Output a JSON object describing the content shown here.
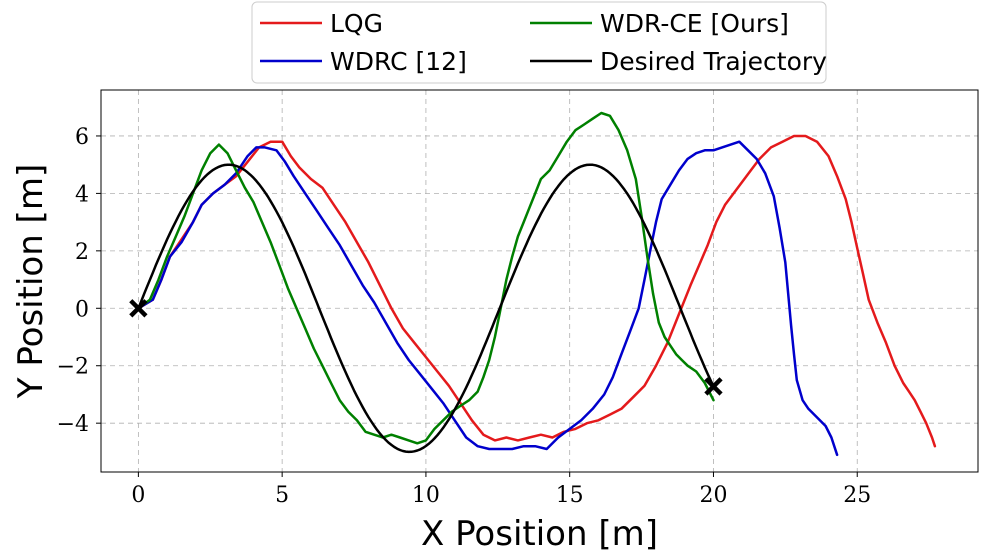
{
  "chart_data": {
    "type": "line",
    "title": "",
    "xlabel": "X Position [m]",
    "ylabel": "Y Position [m]",
    "xlim": [
      -1.3,
      29.2
    ],
    "ylim": [
      -5.7,
      7.6
    ],
    "xticks": [
      0,
      5,
      10,
      15,
      20,
      25
    ],
    "yticks": [
      -4,
      -2,
      0,
      2,
      4,
      6
    ],
    "xtick_labels": [
      "0",
      "5",
      "10",
      "15",
      "20",
      "25"
    ],
    "ytick_labels": [
      "−4",
      "−2",
      "0",
      "2",
      "4",
      "6"
    ],
    "grid": true,
    "legend_position": "top-center-outside",
    "series": [
      {
        "name": "LQG",
        "color": "#e41a1c",
        "x": [
          0,
          0.5,
          0.8,
          1.1,
          1.5,
          1.9,
          2.2,
          2.6,
          3.0,
          3.4,
          3.8,
          4.2,
          4.6,
          5.0,
          5.3,
          5.6,
          6.0,
          6.4,
          6.8,
          7.2,
          7.6,
          8.0,
          8.4,
          8.8,
          9.2,
          9.6,
          10.0,
          10.4,
          10.8,
          11.2,
          11.6,
          12.0,
          12.4,
          12.8,
          13.2,
          13.6,
          14.0,
          14.4,
          14.8,
          15.2,
          15.6,
          16.0,
          16.4,
          16.8,
          17.2,
          17.6,
          18.0,
          18.4,
          18.8,
          19.2,
          19.5,
          19.8,
          20.1,
          20.4,
          20.7,
          21.0,
          21.3,
          21.6,
          22.0,
          22.4,
          22.8,
          23.2,
          23.6,
          24.0,
          24.3,
          24.6,
          24.8,
          25.0,
          25.2,
          25.4,
          25.7,
          26.0,
          26.3,
          26.6,
          26.8,
          27.0,
          27.2,
          27.4,
          27.6,
          27.7
        ],
        "y": [
          0,
          0.3,
          1.0,
          1.8,
          2.4,
          3.0,
          3.6,
          4.0,
          4.3,
          4.6,
          5.1,
          5.6,
          5.8,
          5.8,
          5.3,
          4.9,
          4.5,
          4.2,
          3.6,
          3.0,
          2.3,
          1.6,
          0.8,
          0,
          -0.7,
          -1.2,
          -1.7,
          -2.2,
          -2.7,
          -3.3,
          -3.9,
          -4.4,
          -4.6,
          -4.5,
          -4.6,
          -4.5,
          -4.4,
          -4.5,
          -4.3,
          -4.2,
          -4.0,
          -3.9,
          -3.7,
          -3.5,
          -3.1,
          -2.7,
          -2.0,
          -1.2,
          -0.2,
          0.8,
          1.5,
          2.2,
          3.0,
          3.6,
          4.0,
          4.4,
          4.8,
          5.2,
          5.6,
          5.8,
          6.0,
          6.0,
          5.8,
          5.3,
          4.6,
          3.8,
          3.0,
          2.1,
          1.2,
          0.3,
          -0.5,
          -1.2,
          -2.0,
          -2.6,
          -2.9,
          -3.2,
          -3.6,
          -4.0,
          -4.5,
          -4.8
        ]
      },
      {
        "name": "WDRC [12]",
        "color": "#0000cc",
        "x": [
          0,
          0.5,
          0.8,
          1.1,
          1.5,
          1.9,
          2.2,
          2.6,
          3.0,
          3.4,
          3.8,
          4.1,
          4.4,
          4.8,
          5.1,
          5.4,
          5.8,
          6.2,
          6.6,
          7.0,
          7.4,
          7.8,
          8.2,
          8.6,
          9.0,
          9.4,
          9.8,
          10.2,
          10.6,
          11.0,
          11.4,
          11.8,
          12.2,
          12.6,
          13.0,
          13.4,
          13.8,
          14.2,
          14.6,
          15.0,
          15.4,
          15.8,
          16.2,
          16.5,
          16.8,
          17.1,
          17.4,
          17.6,
          17.8,
          18.0,
          18.2,
          18.5,
          18.8,
          19.1,
          19.4,
          19.7,
          20.0,
          20.3,
          20.6,
          20.9,
          21.2,
          21.5,
          21.8,
          22.1,
          22.3,
          22.5,
          22.6,
          22.7,
          22.8,
          22.9,
          23.1,
          23.3,
          23.6,
          23.9,
          24.1,
          24.3
        ],
        "y": [
          0,
          0.3,
          1.0,
          1.8,
          2.3,
          3.0,
          3.6,
          4.0,
          4.3,
          4.7,
          5.3,
          5.6,
          5.6,
          5.5,
          5.1,
          4.6,
          4.0,
          3.4,
          2.8,
          2.2,
          1.5,
          0.8,
          0.2,
          -0.5,
          -1.2,
          -1.8,
          -2.3,
          -2.8,
          -3.3,
          -3.9,
          -4.5,
          -4.8,
          -4.9,
          -4.9,
          -4.9,
          -4.8,
          -4.8,
          -4.9,
          -4.5,
          -4.2,
          -3.9,
          -3.5,
          -3.0,
          -2.4,
          -1.6,
          -0.8,
          0,
          1.0,
          2.0,
          3.0,
          3.8,
          4.3,
          4.8,
          5.2,
          5.4,
          5.5,
          5.5,
          5.6,
          5.7,
          5.8,
          5.5,
          5.2,
          4.7,
          3.9,
          2.8,
          1.6,
          0.5,
          -0.6,
          -1.6,
          -2.5,
          -3.2,
          -3.5,
          -3.8,
          -4.1,
          -4.5,
          -5.1
        ]
      },
      {
        "name": "WDR-CE [Ours]",
        "color": "#008000",
        "x": [
          0,
          0.4,
          0.7,
          1.0,
          1.3,
          1.6,
          1.9,
          2.2,
          2.5,
          2.8,
          3.1,
          3.4,
          3.7,
          4.0,
          4.3,
          4.6,
          4.9,
          5.2,
          5.5,
          5.8,
          6.1,
          6.4,
          6.7,
          7.0,
          7.3,
          7.6,
          7.9,
          8.2,
          8.5,
          8.8,
          9.1,
          9.4,
          9.7,
          10.0,
          10.3,
          10.6,
          10.9,
          11.2,
          11.5,
          11.8,
          12.0,
          12.2,
          12.4,
          12.6,
          12.8,
          13.0,
          13.2,
          13.4,
          13.6,
          13.8,
          14.0,
          14.3,
          14.6,
          14.9,
          15.2,
          15.5,
          15.8,
          16.1,
          16.4,
          16.7,
          17.0,
          17.3,
          17.5,
          17.7,
          17.9,
          18.1,
          18.3,
          18.5,
          18.7,
          18.9,
          19.1,
          19.4,
          19.7,
          20.0
        ],
        "y": [
          0,
          0.3,
          1.0,
          1.8,
          2.5,
          3.2,
          4.0,
          4.8,
          5.4,
          5.7,
          5.4,
          4.8,
          4.2,
          3.7,
          3.0,
          2.3,
          1.5,
          0.7,
          0,
          -0.7,
          -1.4,
          -2.0,
          -2.6,
          -3.2,
          -3.6,
          -3.9,
          -4.3,
          -4.4,
          -4.5,
          -4.4,
          -4.5,
          -4.6,
          -4.7,
          -4.6,
          -4.2,
          -3.9,
          -3.6,
          -3.4,
          -3.2,
          -2.9,
          -2.4,
          -1.8,
          -1.0,
          0,
          1.0,
          1.8,
          2.5,
          3.0,
          3.5,
          4.0,
          4.5,
          4.8,
          5.3,
          5.8,
          6.2,
          6.4,
          6.6,
          6.8,
          6.7,
          6.2,
          5.5,
          4.5,
          3.2,
          1.8,
          0.5,
          -0.5,
          -1.0,
          -1.3,
          -1.6,
          -1.8,
          -2.0,
          -2.2,
          -2.6,
          -3.2
        ]
      },
      {
        "name": "Desired Trajectory",
        "color": "#000000",
        "function": "y = 5 sin(x/2)",
        "x_range": [
          0,
          20
        ]
      }
    ],
    "markers": [
      {
        "name": "start",
        "x": 0,
        "y": 0,
        "symbol": "x"
      },
      {
        "name": "goal",
        "x": 20,
        "y": -2.72,
        "symbol": "x"
      }
    ]
  }
}
